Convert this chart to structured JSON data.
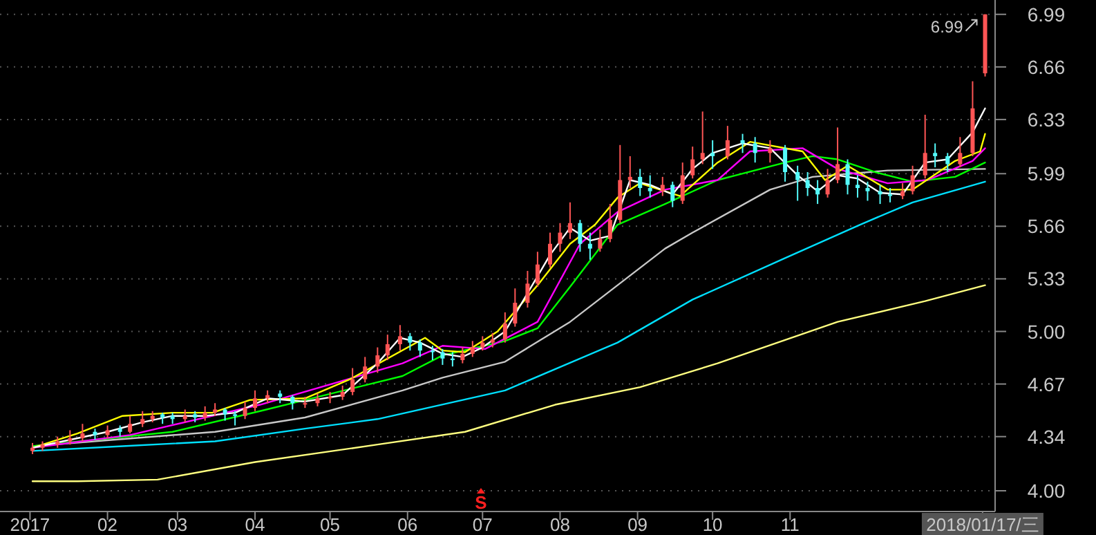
{
  "chart_data": {
    "type": "candlestick",
    "x": [
      "2017-01-02",
      "2017-01-06",
      "2017-01-12",
      "2017-01-17",
      "2017-01-22",
      "2017-01-27",
      "2017-02-01",
      "2017-02-06",
      "2017-02-10",
      "2017-02-15",
      "2017-02-19",
      "2017-02-23",
      "2017-02-27",
      "2017-03-04",
      "2017-03-08",
      "2017-03-12",
      "2017-03-16",
      "2017-03-20",
      "2017-03-24",
      "2017-03-28",
      "2017-04-01",
      "2017-04-06",
      "2017-04-11",
      "2017-04-16",
      "2017-04-21",
      "2017-04-26",
      "2017-05-01",
      "2017-05-06",
      "2017-05-10",
      "2017-05-15",
      "2017-05-20",
      "2017-05-24",
      "2017-05-29",
      "2017-06-02",
      "2017-06-06",
      "2017-06-11",
      "2017-06-15",
      "2017-06-19",
      "2017-06-23",
      "2017-06-27",
      "2017-07-01",
      "2017-07-05",
      "2017-07-10",
      "2017-07-14",
      "2017-07-19",
      "2017-07-23",
      "2017-07-28",
      "2017-08-01",
      "2017-08-05",
      "2017-08-09",
      "2017-08-13",
      "2017-08-17",
      "2017-08-21",
      "2017-08-25",
      "2017-08-29",
      "2017-09-02",
      "2017-09-06",
      "2017-09-11",
      "2017-09-15",
      "2017-09-19",
      "2017-09-23",
      "2017-09-27",
      "2017-10-01",
      "2017-10-07",
      "2017-10-13",
      "2017-10-18",
      "2017-10-24",
      "2017-10-30",
      "2017-11-04",
      "2017-11-08",
      "2017-11-12",
      "2017-11-16",
      "2017-11-20",
      "2017-11-24",
      "2017-11-28",
      "2017-12-02",
      "2017-12-07",
      "2017-12-11",
      "2017-12-16",
      "2017-12-20",
      "2017-12-25",
      "2017-12-29",
      "2018-01-03",
      "2018-01-08",
      "2018-01-13",
      "2018-01-18"
    ],
    "ohlc": [
      [
        4.25,
        4.3,
        4.23,
        4.27
      ],
      [
        4.27,
        4.31,
        4.25,
        4.29
      ],
      [
        4.29,
        4.34,
        4.27,
        4.31
      ],
      [
        4.31,
        4.38,
        4.29,
        4.33
      ],
      [
        4.33,
        4.42,
        4.31,
        4.36
      ],
      [
        4.37,
        4.39,
        4.32,
        4.35
      ],
      [
        4.35,
        4.41,
        4.33,
        4.38
      ],
      [
        4.39,
        4.41,
        4.34,
        4.37
      ],
      [
        4.37,
        4.47,
        4.36,
        4.42
      ],
      [
        4.42,
        4.5,
        4.4,
        4.45
      ],
      [
        4.45,
        4.5,
        4.43,
        4.47
      ],
      [
        4.48,
        4.49,
        4.42,
        4.46
      ],
      [
        4.47,
        4.49,
        4.42,
        4.45
      ],
      [
        4.45,
        4.51,
        4.43,
        4.47
      ],
      [
        4.48,
        4.5,
        4.43,
        4.46
      ],
      [
        4.46,
        4.53,
        4.44,
        4.49
      ],
      [
        4.49,
        4.55,
        4.47,
        4.51
      ],
      [
        4.51,
        4.52,
        4.44,
        4.48
      ],
      [
        4.48,
        4.5,
        4.41,
        4.47
      ],
      [
        4.47,
        4.56,
        4.45,
        4.52
      ],
      [
        4.52,
        4.63,
        4.5,
        4.58
      ],
      [
        4.58,
        4.63,
        4.55,
        4.6
      ],
      [
        4.61,
        4.63,
        4.55,
        4.59
      ],
      [
        4.59,
        4.6,
        4.51,
        4.55
      ],
      [
        4.55,
        4.59,
        4.52,
        4.55
      ],
      [
        4.55,
        4.61,
        4.53,
        4.58
      ],
      [
        4.58,
        4.62,
        4.55,
        4.59
      ],
      [
        4.59,
        4.66,
        4.57,
        4.62
      ],
      [
        4.62,
        4.77,
        4.6,
        4.7
      ],
      [
        4.7,
        4.84,
        4.68,
        4.78
      ],
      [
        4.78,
        4.9,
        4.74,
        4.85
      ],
      [
        4.85,
        4.98,
        4.82,
        4.92
      ],
      [
        4.92,
        5.04,
        4.88,
        4.97
      ],
      [
        4.97,
        4.99,
        4.88,
        4.93
      ],
      [
        4.93,
        4.95,
        4.84,
        4.88
      ],
      [
        4.88,
        4.91,
        4.82,
        4.87
      ],
      [
        4.87,
        4.89,
        4.79,
        4.83
      ],
      [
        4.83,
        4.87,
        4.78,
        4.82
      ],
      [
        4.82,
        4.9,
        4.8,
        4.86
      ],
      [
        4.86,
        4.94,
        4.84,
        4.9
      ],
      [
        4.9,
        4.97,
        4.88,
        4.93
      ],
      [
        4.93,
        4.99,
        4.9,
        4.95
      ],
      [
        4.95,
        5.12,
        4.93,
        5.05
      ],
      [
        5.05,
        5.27,
        5.03,
        5.18
      ],
      [
        5.18,
        5.38,
        5.15,
        5.3
      ],
      [
        5.3,
        5.5,
        5.28,
        5.42
      ],
      [
        5.42,
        5.62,
        5.4,
        5.55
      ],
      [
        5.55,
        5.68,
        5.5,
        5.62
      ],
      [
        5.62,
        5.81,
        5.58,
        5.68
      ],
      [
        5.68,
        5.7,
        5.5,
        5.55
      ],
      [
        5.55,
        5.62,
        5.45,
        5.52
      ],
      [
        5.52,
        5.64,
        5.5,
        5.58
      ],
      [
        5.58,
        5.8,
        5.56,
        5.7
      ],
      [
        5.7,
        6.17,
        5.68,
        5.95
      ],
      [
        5.95,
        6.1,
        5.9,
        5.97
      ],
      [
        5.97,
        6.02,
        5.85,
        5.9
      ],
      [
        5.9,
        5.98,
        5.84,
        5.88
      ],
      [
        5.88,
        5.97,
        5.85,
        5.92
      ],
      [
        5.92,
        5.94,
        5.78,
        5.82
      ],
      [
        5.82,
        6.06,
        5.8,
        5.98
      ],
      [
        5.98,
        6.16,
        5.96,
        6.08
      ],
      [
        6.08,
        6.38,
        6.05,
        6.12
      ],
      [
        6.12,
        6.2,
        6.02,
        6.1
      ],
      [
        6.1,
        6.29,
        6.08,
        6.2
      ],
      [
        6.2,
        6.24,
        6.12,
        6.18
      ],
      [
        6.18,
        6.22,
        6.06,
        6.12
      ],
      [
        6.12,
        6.2,
        6.06,
        6.15
      ],
      [
        6.15,
        6.17,
        5.94,
        6.0
      ],
      [
        6.0,
        6.04,
        5.82,
        5.95
      ],
      [
        5.95,
        6.0,
        5.85,
        5.9
      ],
      [
        5.9,
        5.95,
        5.8,
        5.86
      ],
      [
        5.86,
        6.02,
        5.84,
        5.95
      ],
      [
        5.95,
        6.28,
        5.93,
        6.05
      ],
      [
        6.05,
        6.08,
        5.86,
        5.92
      ],
      [
        5.92,
        5.98,
        5.84,
        5.9
      ],
      [
        5.9,
        5.94,
        5.82,
        5.88
      ],
      [
        5.88,
        5.92,
        5.8,
        5.86
      ],
      [
        5.86,
        5.9,
        5.81,
        5.85
      ],
      [
        5.85,
        5.93,
        5.83,
        5.88
      ],
      [
        5.88,
        6.04,
        5.86,
        5.98
      ],
      [
        5.98,
        6.36,
        5.96,
        6.12
      ],
      [
        6.12,
        6.18,
        6.03,
        6.1
      ],
      [
        6.1,
        6.12,
        6.0,
        6.05
      ],
      [
        6.05,
        6.22,
        6.03,
        6.12
      ],
      [
        6.12,
        6.57,
        6.1,
        6.4
      ],
      [
        6.62,
        6.99,
        6.6,
        6.99
      ]
    ],
    "colors": [
      "#ff5555",
      "#ff5555",
      "#ff5555",
      "#ff5555",
      "#ff5555",
      "#54fcfc",
      "#ff5555",
      "#54fcfc",
      "#ff5555",
      "#ff5555",
      "#ff5555",
      "#54fcfc",
      "#54fcfc",
      "#ff5555",
      "#54fcfc",
      "#ff5555",
      "#ff5555",
      "#54fcfc",
      "#54fcfc",
      "#ff5555",
      "#ff5555",
      "#ff5555",
      "#54fcfc",
      "#54fcfc",
      "#ff5555",
      "#ff5555",
      "#ff5555",
      "#ff5555",
      "#ff5555",
      "#ff5555",
      "#ff5555",
      "#ff5555",
      "#ff5555",
      "#54fcfc",
      "#54fcfc",
      "#54fcfc",
      "#54fcfc",
      "#54fcfc",
      "#ff5555",
      "#ff5555",
      "#ff5555",
      "#ff5555",
      "#ff5555",
      "#ff5555",
      "#ff5555",
      "#ff5555",
      "#ff5555",
      "#ff5555",
      "#ff5555",
      "#54fcfc",
      "#54fcfc",
      "#ff5555",
      "#ff5555",
      "#ff5555",
      "#ff5555",
      "#54fcfc",
      "#54fcfc",
      "#ff5555",
      "#54fcfc",
      "#ff5555",
      "#ff5555",
      "#ff5555",
      "#54fcfc",
      "#ff5555",
      "#54fcfc",
      "#54fcfc",
      "#ff5555",
      "#54fcfc",
      "#54fcfc",
      "#54fcfc",
      "#54fcfc",
      "#ff5555",
      "#ff5555",
      "#54fcfc",
      "#54fcfc",
      "#54fcfc",
      "#54fcfc",
      "#54fcfc",
      "#ff5555",
      "#ff5555",
      "#ff5555",
      "#54fcfc",
      "#54fcfc",
      "#ff5555",
      "#ff5555",
      "#ff5555"
    ],
    "series": [
      {
        "type": "line",
        "color": "#ffff80",
        "x": [
          "2017-01-02",
          "2017-01-20",
          "2017-02-21",
          "2017-04-01",
          "2017-05-20",
          "2017-06-24",
          "2017-07-30",
          "2017-09-02",
          "2017-10-03",
          "2017-11-20",
          "2017-12-25",
          "2018-01-18"
        ],
        "values": [
          4.06,
          4.06,
          4.07,
          4.18,
          4.29,
          4.37,
          4.54,
          4.65,
          4.8,
          5.06,
          5.19,
          5.29
        ]
      },
      {
        "type": "line",
        "color": "#00e0ff",
        "x": [
          "2017-01-02",
          "2017-02-07",
          "2017-03-16",
          "2017-04-21",
          "2017-05-20",
          "2017-07-10",
          "2017-08-24",
          "2017-09-23",
          "2017-10-30",
          "2017-11-29",
          "2017-12-20",
          "2018-01-18"
        ],
        "values": [
          4.25,
          4.28,
          4.31,
          4.39,
          4.45,
          4.63,
          4.93,
          5.2,
          5.46,
          5.67,
          5.81,
          5.94
        ]
      },
      {
        "type": "line",
        "color": "#c8c8c8",
        "x": [
          "2017-01-02",
          "2017-03-16",
          "2017-04-21",
          "2017-05-30",
          "2017-06-15",
          "2017-07-10",
          "2017-08-05",
          "2017-08-24",
          "2017-09-12",
          "2017-09-23",
          "2017-10-24",
          "2017-11-10",
          "2017-12-10",
          "2018-01-18"
        ],
        "values": [
          4.28,
          4.37,
          4.46,
          4.63,
          4.71,
          4.81,
          5.06,
          5.29,
          5.52,
          5.62,
          5.89,
          5.97,
          6.01,
          6.02
        ]
      },
      {
        "type": "line",
        "color": "#00ff00",
        "x": [
          "2017-01-02",
          "2017-02-27",
          "2017-04-03",
          "2017-05-30",
          "2017-06-15",
          "2017-07-10",
          "2017-07-23",
          "2017-08-05",
          "2017-08-24",
          "2017-09-12",
          "2017-10-03",
          "2017-10-30",
          "2017-11-10",
          "2017-11-20",
          "2017-12-05",
          "2017-12-20",
          "2018-01-06",
          "2018-01-18"
        ],
        "values": [
          4.28,
          4.37,
          4.5,
          4.72,
          4.85,
          4.94,
          5.02,
          5.28,
          5.67,
          5.8,
          5.95,
          6.06,
          6.1,
          6.08,
          6.0,
          5.94,
          5.97,
          6.06
        ]
      },
      {
        "type": "line",
        "color": "#ff00ff",
        "x": [
          "2017-01-02",
          "2017-02-10",
          "2017-04-03",
          "2017-05-30",
          "2017-06-15",
          "2017-07-02",
          "2017-07-23",
          "2017-08-09",
          "2017-08-24",
          "2017-09-12",
          "2017-10-03",
          "2017-10-16",
          "2017-11-06",
          "2017-11-20",
          "2017-12-10",
          "2017-12-26",
          "2018-01-13",
          "2018-01-18"
        ],
        "values": [
          4.27,
          4.35,
          4.54,
          4.8,
          4.91,
          4.89,
          5.06,
          5.55,
          5.75,
          5.89,
          5.95,
          6.13,
          6.15,
          6.02,
          5.93,
          5.95,
          6.07,
          6.15
        ]
      },
      {
        "type": "line",
        "color": "#ffff00",
        "x": [
          "2017-01-02",
          "2017-01-20",
          "2017-02-07",
          "2017-02-27",
          "2017-03-15",
          "2017-03-30",
          "2017-04-21",
          "2017-05-09",
          "2017-06-08",
          "2017-06-15",
          "2017-06-24",
          "2017-07-07",
          "2017-07-23",
          "2017-08-05",
          "2017-08-15",
          "2017-08-24",
          "2017-09-02",
          "2017-09-18",
          "2017-10-03",
          "2017-10-16",
          "2017-11-06",
          "2017-11-15",
          "2017-11-24",
          "2017-12-10",
          "2017-12-20",
          "2018-01-06",
          "2018-01-16",
          "2018-01-18"
        ],
        "values": [
          4.27,
          4.36,
          4.47,
          4.49,
          4.49,
          4.57,
          4.58,
          4.7,
          4.96,
          4.88,
          4.87,
          5.0,
          5.29,
          5.55,
          5.67,
          5.84,
          5.93,
          5.85,
          6.06,
          6.19,
          6.13,
          5.95,
          6.04,
          5.89,
          5.89,
          6.07,
          6.13,
          6.24
        ]
      },
      {
        "type": "line",
        "color": "#ffffff",
        "x": [
          "2017-01-02",
          "2017-01-17",
          "2017-02-01",
          "2017-02-15",
          "2017-02-27",
          "2017-03-12",
          "2017-03-24",
          "2017-04-06",
          "2017-04-21",
          "2017-05-06",
          "2017-05-20",
          "2017-05-29",
          "2017-06-06",
          "2017-06-15",
          "2017-06-23",
          "2017-07-01",
          "2017-07-10",
          "2017-07-19",
          "2017-07-28",
          "2017-08-05",
          "2017-08-13",
          "2017-08-21",
          "2017-08-29",
          "2017-09-06",
          "2017-09-15",
          "2017-09-23",
          "2017-10-01",
          "2017-10-13",
          "2017-10-24",
          "2017-11-04",
          "2017-11-12",
          "2017-11-20",
          "2017-11-28",
          "2017-12-07",
          "2017-12-16",
          "2017-12-25",
          "2018-01-03",
          "2018-01-13",
          "2018-01-18"
        ],
        "values": [
          4.27,
          4.32,
          4.37,
          4.43,
          4.47,
          4.47,
          4.49,
          4.58,
          4.56,
          4.6,
          4.8,
          4.96,
          4.93,
          4.86,
          4.84,
          4.9,
          5.0,
          5.24,
          5.48,
          5.65,
          5.57,
          5.6,
          5.95,
          5.92,
          5.86,
          6.02,
          6.12,
          6.18,
          6.15,
          5.98,
          5.88,
          5.98,
          5.96,
          5.87,
          5.86,
          6.06,
          6.08,
          6.25,
          6.4
        ]
      }
    ],
    "xlim": [
      "2016-12-20",
      "2018-01-22"
    ],
    "ylim": [
      3.87,
      7.08
    ],
    "xticks": [
      {
        "value": "2017",
        "label": "2017"
      },
      {
        "value": "2017-02",
        "label": "02"
      },
      {
        "value": "2017-03",
        "label": "03"
      },
      {
        "value": "2017-04",
        "label": "04"
      },
      {
        "value": "2017-05",
        "label": "05"
      },
      {
        "value": "2017-06",
        "label": "06"
      },
      {
        "value": "2017-07",
        "label": "07"
      },
      {
        "value": "2017-08",
        "label": "08"
      },
      {
        "value": "2017-09",
        "label": "09"
      },
      {
        "value": "2017-10",
        "label": "10"
      },
      {
        "value": "2017-11",
        "label": "11"
      },
      {
        "value": "2018-01-17",
        "label": "2018/01/17/三"
      }
    ],
    "yticks": [
      {
        "value": 4.0,
        "label": "4.00"
      },
      4.34,
      4.67,
      {
        "value": 5.0,
        "label": "5.00"
      },
      5.33,
      5.66,
      5.99,
      6.33,
      6.66,
      6.99
    ],
    "grid": "y",
    "annotations": [
      {
        "text": "6.99",
        "x": "2018-01-18",
        "y": 6.99
      },
      "S"
    ]
  }
}
